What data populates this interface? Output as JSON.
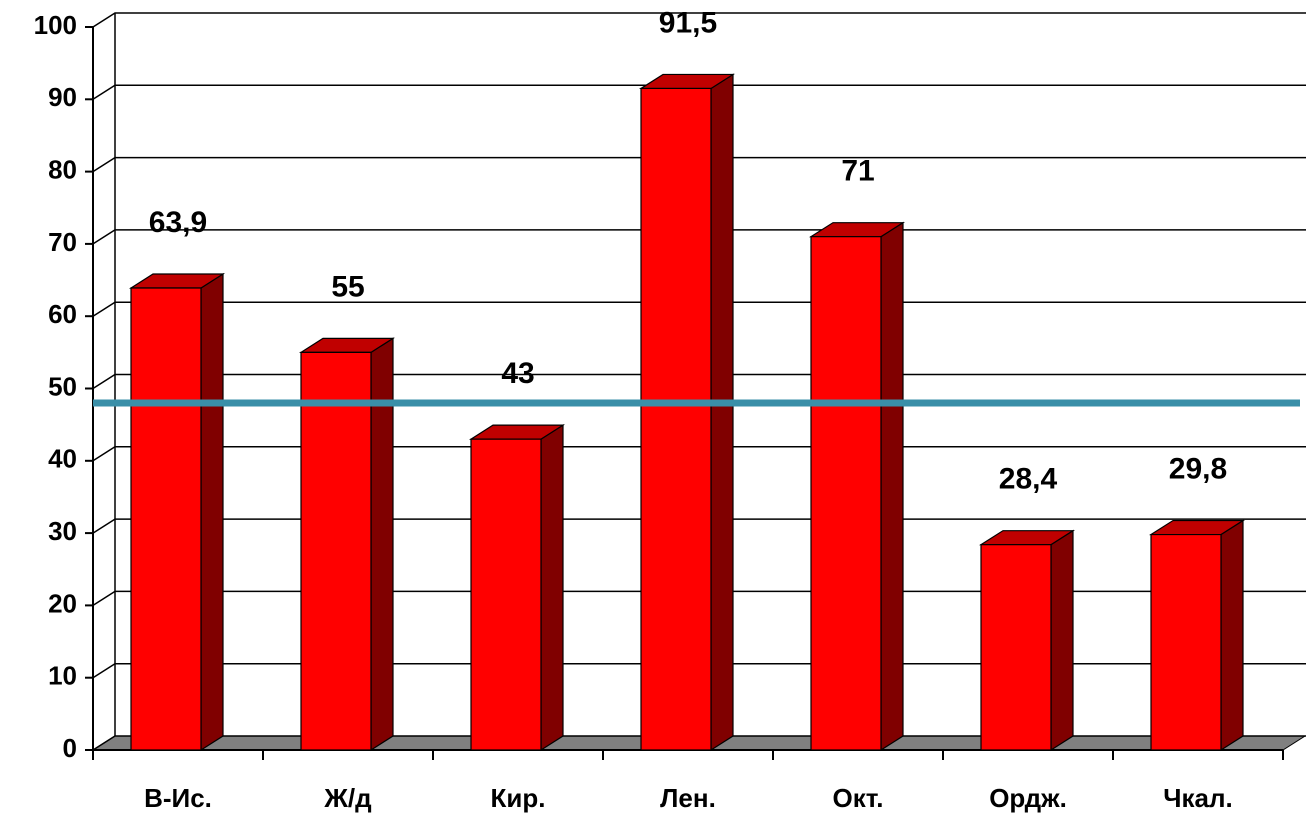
{
  "chart_data": {
    "type": "bar3d",
    "categories": [
      "В-Ис.",
      "Ж/д",
      "Кир.",
      "Лен.",
      "Окт.",
      "Ордж.",
      "Чкал."
    ],
    "values": [
      63.9,
      55,
      43,
      91.5,
      71,
      28.4,
      29.8
    ],
    "value_labels": [
      "63,9",
      "55",
      "43",
      "91,5",
      "71",
      "28,4",
      "29,8"
    ],
    "color": "#ff0000",
    "ylim": [
      0,
      100
    ],
    "yticks": [
      0,
      10,
      20,
      30,
      40,
      50,
      60,
      70,
      80,
      90,
      100
    ],
    "grid": true,
    "reference_line": {
      "value": 48,
      "color": "#3a8fa8"
    }
  }
}
